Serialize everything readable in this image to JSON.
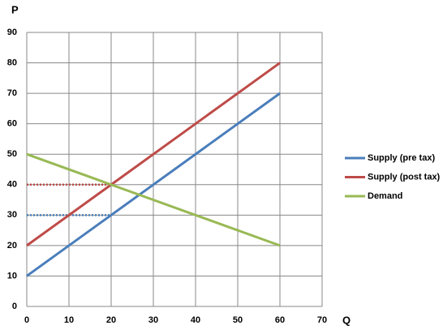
{
  "chart_data": {
    "type": "line",
    "x_label": "Q",
    "y_label": "P",
    "x": [
      0,
      60
    ],
    "series": [
      {
        "name": "Supply (pre tax)",
        "color": "#4a7ebb",
        "values": [
          10,
          70
        ]
      },
      {
        "name": "Supply (post tax)",
        "color": "#be4b48",
        "values": [
          20,
          80
        ]
      },
      {
        "name": "Demand",
        "color": "#98b954",
        "values": [
          50,
          20
        ]
      }
    ],
    "dotted_lines": [
      {
        "color": "#be4b48",
        "x": [
          0,
          20
        ],
        "values": [
          40,
          40
        ]
      },
      {
        "color": "#4a7ebb",
        "x": [
          0,
          20
        ],
        "values": [
          30,
          30
        ]
      }
    ],
    "xlim": [
      0,
      70
    ],
    "ylim": [
      0,
      90
    ],
    "xticks": [
      0,
      10,
      20,
      30,
      40,
      50,
      60,
      70
    ],
    "yticks": [
      0,
      10,
      20,
      30,
      40,
      50,
      60,
      70,
      80,
      90
    ],
    "grid": true,
    "legend": "right"
  }
}
